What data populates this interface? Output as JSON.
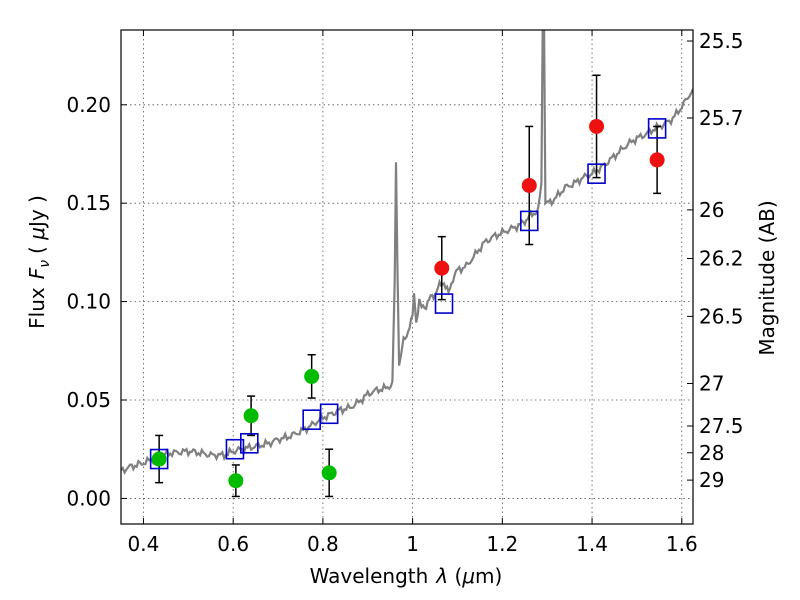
{
  "chart_data": {
    "type": "scatter",
    "xlabel": "Wavelength",
    "xlabel_symbol": "λ",
    "xlabel_unit_open": " (",
    "xlabel_unit_mu": "μ",
    "xlabel_unit_close": "m)",
    "ylabel": "Flux",
    "ylabel_symbol": "F",
    "ylabel_symbol_sub": "ν",
    "ylabel_unit_open": "( ",
    "ylabel_unit_mu": "μ",
    "ylabel_unit_close": "Jy )",
    "y2label": "Magnitude (AB)",
    "xlim": [
      0.35,
      1.625
    ],
    "ylim": [
      -0.013,
      0.238
    ],
    "grid": true,
    "grid_style": "dotted",
    "x_ticks": [
      0.4,
      0.6,
      0.8,
      1.0,
      1.2,
      1.4,
      1.6
    ],
    "x_tick_labels": [
      "0.4",
      "0.6",
      "0.8",
      "1",
      "1.2",
      "1.4",
      "1.6"
    ],
    "y_ticks": [
      0.0,
      0.05,
      0.1,
      0.15,
      0.2
    ],
    "y_tick_labels": [
      "0.00",
      "0.05",
      "0.10",
      "0.15",
      "0.20"
    ],
    "y2_ticks": [
      {
        "label": "25.5",
        "flux": 0.2324
      },
      {
        "label": "25.7",
        "flux": 0.1933
      },
      {
        "label": "26",
        "flux": 0.1466
      },
      {
        "label": "26.2",
        "flux": 0.1219
      },
      {
        "label": "26.5",
        "flux": 0.0925
      },
      {
        "label": "27",
        "flux": 0.0584
      },
      {
        "label": "27.5",
        "flux": 0.0368
      },
      {
        "label": "28",
        "flux": 0.0232
      },
      {
        "label": "29",
        "flux": 0.0093
      }
    ],
    "colors": {
      "model": "#808080",
      "green": "#00bb00",
      "red": "#ee1111",
      "box": "#0000cc",
      "errorbar": "#000000",
      "grid": "#555555"
    },
    "series": [
      {
        "marker": "circle",
        "color": "green",
        "points": [
          {
            "x": 0.435,
            "y": 0.02,
            "err": 0.012
          },
          {
            "x": 0.606,
            "y": 0.009,
            "err": 0.008
          },
          {
            "x": 0.64,
            "y": 0.042,
            "err": 0.01
          },
          {
            "x": 0.775,
            "y": 0.062,
            "err": 0.011
          },
          {
            "x": 0.814,
            "y": 0.013,
            "err": 0.012
          }
        ]
      },
      {
        "marker": "circle",
        "color": "red",
        "points": [
          {
            "x": 1.065,
            "y": 0.117,
            "err": 0.016
          },
          {
            "x": 1.26,
            "y": 0.159,
            "err": 0.03
          },
          {
            "x": 1.41,
            "y": 0.189,
            "err": 0.026
          },
          {
            "x": 1.545,
            "y": 0.172,
            "err": 0.017
          }
        ]
      },
      {
        "marker": "square",
        "color": "box",
        "points": [
          {
            "x": 0.435,
            "y": 0.02
          },
          {
            "x": 0.604,
            "y": 0.025
          },
          {
            "x": 0.636,
            "y": 0.028
          },
          {
            "x": 0.775,
            "y": 0.04
          },
          {
            "x": 0.814,
            "y": 0.043
          },
          {
            "x": 1.07,
            "y": 0.099
          },
          {
            "x": 1.26,
            "y": 0.141
          },
          {
            "x": 1.41,
            "y": 0.165
          },
          {
            "x": 1.545,
            "y": 0.188
          }
        ]
      }
    ],
    "model_spectrum": {
      "x": [
        0.35,
        0.37,
        0.4,
        0.43,
        0.46,
        0.5,
        0.53,
        0.55,
        0.58,
        0.6,
        0.62,
        0.64,
        0.66,
        0.68,
        0.7,
        0.72,
        0.74,
        0.76,
        0.78,
        0.8,
        0.82,
        0.84,
        0.86,
        0.88,
        0.9,
        0.92,
        0.94,
        0.955,
        0.96,
        0.963,
        0.966,
        0.97,
        0.975,
        0.98,
        0.99,
        1.0,
        1.003,
        1.008,
        1.015,
        1.02,
        1.03,
        1.04,
        1.05,
        1.06,
        1.07,
        1.08,
        1.09,
        1.1,
        1.12,
        1.14,
        1.16,
        1.18,
        1.2,
        1.22,
        1.24,
        1.25,
        1.26,
        1.27,
        1.28,
        1.287,
        1.29,
        1.293,
        1.296,
        1.3,
        1.31,
        1.32,
        1.34,
        1.36,
        1.38,
        1.4,
        1.42,
        1.44,
        1.46,
        1.48,
        1.5,
        1.52,
        1.54,
        1.56,
        1.58,
        1.6,
        1.625
      ],
      "y": [
        0.014,
        0.016,
        0.018,
        0.021,
        0.023,
        0.024,
        0.023,
        0.022,
        0.022,
        0.024,
        0.025,
        0.026,
        0.027,
        0.028,
        0.03,
        0.031,
        0.033,
        0.035,
        0.038,
        0.041,
        0.043,
        0.045,
        0.046,
        0.049,
        0.053,
        0.055,
        0.056,
        0.058,
        0.11,
        0.17,
        0.12,
        0.068,
        0.074,
        0.08,
        0.085,
        0.092,
        0.105,
        0.09,
        0.1,
        0.097,
        0.098,
        0.102,
        0.104,
        0.108,
        0.11,
        0.104,
        0.112,
        0.116,
        0.118,
        0.124,
        0.13,
        0.133,
        0.135,
        0.137,
        0.139,
        0.141,
        0.143,
        0.145,
        0.146,
        0.16,
        0.24,
        0.24,
        0.15,
        0.15,
        0.151,
        0.153,
        0.158,
        0.16,
        0.163,
        0.165,
        0.168,
        0.172,
        0.176,
        0.18,
        0.183,
        0.185,
        0.188,
        0.19,
        0.193,
        0.199,
        0.208
      ]
    }
  }
}
